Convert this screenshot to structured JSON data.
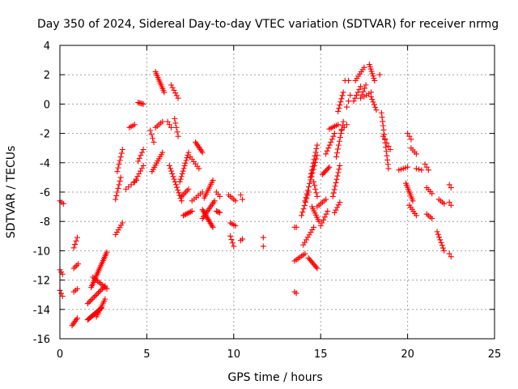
{
  "chart_data": {
    "type": "scatter",
    "title": "Day 350 of 2024, Sidereal Day-to-day VTEC variation (SDTVAR) for receiver nrmg",
    "xlabel": "GPS time / hours",
    "ylabel": "SDTVAR / TECUs",
    "xlim": [
      0,
      25
    ],
    "ylim": [
      -16,
      4
    ],
    "xticks": [
      0,
      5,
      10,
      15,
      20,
      25
    ],
    "yticks": [
      -16,
      -14,
      -12,
      -10,
      -8,
      -6,
      -4,
      -2,
      0,
      2,
      4
    ],
    "grid": true,
    "marker": "+",
    "color": "#ff0000",
    "series": [
      {
        "name": "SDTVAR",
        "segments": [
          {
            "x0": 0.0,
            "x1": 0.2,
            "y0": -6.6,
            "y1": -6.8,
            "n": 3
          },
          {
            "x0": 0.0,
            "x1": 0.15,
            "y0": -11.3,
            "y1": -11.6,
            "n": 3
          },
          {
            "x0": 0.0,
            "x1": 0.15,
            "y0": -12.7,
            "y1": -13.1,
            "n": 3
          },
          {
            "x0": 0.7,
            "x1": 1.0,
            "y0": -15.1,
            "y1": -14.6,
            "n": 6
          },
          {
            "x0": 0.8,
            "x1": 1.0,
            "y0": -12.8,
            "y1": -12.6,
            "n": 3
          },
          {
            "x0": 0.8,
            "x1": 1.05,
            "y0": -11.2,
            "y1": -10.9,
            "n": 4
          },
          {
            "x0": 0.8,
            "x1": 1.0,
            "y0": -9.8,
            "y1": -9.1,
            "n": 4
          },
          {
            "x0": 1.6,
            "x1": 2.4,
            "y0": -14.7,
            "y1": -13.9,
            "n": 18
          },
          {
            "x0": 1.6,
            "x1": 2.6,
            "y0": -13.6,
            "y1": -12.4,
            "n": 14
          },
          {
            "x0": 1.8,
            "x1": 2.7,
            "y0": -12.5,
            "y1": -10.1,
            "n": 22
          },
          {
            "x0": 1.9,
            "x1": 2.7,
            "y0": -11.8,
            "y1": -12.6,
            "n": 10
          },
          {
            "x0": 2.1,
            "x1": 2.6,
            "y0": -14.5,
            "y1": -13.3,
            "n": 10
          },
          {
            "x0": 3.2,
            "x1": 3.6,
            "y0": -8.9,
            "y1": -8.1,
            "n": 6
          },
          {
            "x0": 3.2,
            "x1": 3.5,
            "y0": -6.5,
            "y1": -5.0,
            "n": 7
          },
          {
            "x0": 3.3,
            "x1": 3.6,
            "y0": -4.6,
            "y1": -3.1,
            "n": 7
          },
          {
            "x0": 3.8,
            "x1": 4.4,
            "y0": -5.8,
            "y1": -5.2,
            "n": 5
          },
          {
            "x0": 4.0,
            "x1": 4.3,
            "y0": -1.6,
            "y1": -1.4,
            "n": 4
          },
          {
            "x0": 4.5,
            "x1": 4.8,
            "y0": 0.1,
            "y1": 0.0,
            "n": 5
          },
          {
            "x0": 4.3,
            "x1": 4.8,
            "y0": -5.3,
            "y1": -4.2,
            "n": 7
          },
          {
            "x0": 4.5,
            "x1": 4.8,
            "y0": -3.9,
            "y1": -3.1,
            "n": 5
          },
          {
            "x0": 5.2,
            "x1": 5.4,
            "y0": -1.8,
            "y1": -2.6,
            "n": 4
          },
          {
            "x0": 5.3,
            "x1": 5.9,
            "y0": -4.6,
            "y1": -3.3,
            "n": 10
          },
          {
            "x0": 5.5,
            "x1": 6.0,
            "y0": 2.2,
            "y1": 0.8,
            "n": 12
          },
          {
            "x0": 5.5,
            "x1": 5.9,
            "y0": -1.6,
            "y1": -1.2,
            "n": 5
          },
          {
            "x0": 6.2,
            "x1": 6.4,
            "y0": -1.2,
            "y1": -1.6,
            "n": 3
          },
          {
            "x0": 6.3,
            "x1": 7.0,
            "y0": -4.2,
            "y1": -6.6,
            "n": 14
          },
          {
            "x0": 6.4,
            "x1": 6.8,
            "y0": 1.3,
            "y1": 0.4,
            "n": 6
          },
          {
            "x0": 6.6,
            "x1": 6.8,
            "y0": -1.0,
            "y1": -2.2,
            "n": 5
          },
          {
            "x0": 6.9,
            "x1": 7.4,
            "y0": -5.3,
            "y1": -3.3,
            "n": 12
          },
          {
            "x0": 7.0,
            "x1": 7.4,
            "y0": -6.3,
            "y1": -5.8,
            "n": 6
          },
          {
            "x0": 7.1,
            "x1": 7.6,
            "y0": -7.6,
            "y1": -7.3,
            "n": 8
          },
          {
            "x0": 7.5,
            "x1": 8.0,
            "y0": -3.6,
            "y1": -4.4,
            "n": 6
          },
          {
            "x0": 7.6,
            "x1": 8.2,
            "y0": -6.6,
            "y1": -6.0,
            "n": 6
          },
          {
            "x0": 7.8,
            "x1": 8.2,
            "y0": -2.6,
            "y1": -3.3,
            "n": 8
          },
          {
            "x0": 8.2,
            "x1": 8.8,
            "y0": -7.2,
            "y1": -8.4,
            "n": 14
          },
          {
            "x0": 8.3,
            "x1": 8.8,
            "y0": -6.4,
            "y1": -5.2,
            "n": 10
          },
          {
            "x0": 8.2,
            "x1": 8.9,
            "y0": -7.8,
            "y1": -6.6,
            "n": 12
          },
          {
            "x0": 9.0,
            "x1": 9.2,
            "y0": -7.3,
            "y1": -7.4,
            "n": 4
          },
          {
            "x0": 9.0,
            "x1": 9.2,
            "y0": -6.0,
            "y1": -6.3,
            "n": 3
          },
          {
            "x0": 9.7,
            "x1": 10.1,
            "y0": -6.2,
            "y1": -6.6,
            "n": 5
          },
          {
            "x0": 9.8,
            "x1": 10.1,
            "y0": -8.1,
            "y1": -8.3,
            "n": 4
          },
          {
            "x0": 9.8,
            "x1": 10.0,
            "y0": -9.0,
            "y1": -9.7,
            "n": 4
          },
          {
            "x0": 10.4,
            "x1": 10.5,
            "y0": -6.2,
            "y1": -6.5,
            "n": 2
          },
          {
            "x0": 10.4,
            "x1": 10.5,
            "y0": -9.3,
            "y1": -9.2,
            "n": 2
          },
          {
            "x0": 11.7,
            "x1": 11.7,
            "y0": -9.1,
            "y1": -9.1,
            "n": 1
          },
          {
            "x0": 11.7,
            "x1": 11.7,
            "y0": -9.7,
            "y1": -9.7,
            "n": 1
          },
          {
            "x0": 13.5,
            "x1": 13.6,
            "y0": -8.4,
            "y1": -8.4,
            "n": 2
          },
          {
            "x0": 13.5,
            "x1": 13.6,
            "y0": -12.8,
            "y1": -12.9,
            "n": 2
          },
          {
            "x0": 13.5,
            "x1": 14.1,
            "y0": -10.7,
            "y1": -10.2,
            "n": 7
          },
          {
            "x0": 13.9,
            "x1": 14.3,
            "y0": -7.6,
            "y1": -6.0,
            "n": 8
          },
          {
            "x0": 14.0,
            "x1": 14.6,
            "y0": -9.6,
            "y1": -8.4,
            "n": 8
          },
          {
            "x0": 14.1,
            "x1": 14.8,
            "y0": -6.6,
            "y1": -3.5,
            "n": 14
          },
          {
            "x0": 14.3,
            "x1": 14.8,
            "y0": -10.5,
            "y1": -11.2,
            "n": 9
          },
          {
            "x0": 14.4,
            "x1": 14.8,
            "y0": -5.0,
            "y1": -2.8,
            "n": 10
          },
          {
            "x0": 14.5,
            "x1": 14.9,
            "y0": -7.0,
            "y1": -8.0,
            "n": 8
          },
          {
            "x0": 14.6,
            "x1": 14.8,
            "y0": -5.3,
            "y1": -6.3,
            "n": 5
          },
          {
            "x0": 14.8,
            "x1": 15.3,
            "y0": -7.0,
            "y1": -6.5,
            "n": 6
          },
          {
            "x0": 15.0,
            "x1": 15.4,
            "y0": -8.3,
            "y1": -7.3,
            "n": 6
          },
          {
            "x0": 15.1,
            "x1": 15.5,
            "y0": -4.8,
            "y1": -4.3,
            "n": 7
          },
          {
            "x0": 15.3,
            "x1": 15.8,
            "y0": -3.4,
            "y1": -2.0,
            "n": 8
          },
          {
            "x0": 15.5,
            "x1": 16.0,
            "y0": -1.7,
            "y1": -1.4,
            "n": 6
          },
          {
            "x0": 15.7,
            "x1": 16.1,
            "y0": -6.3,
            "y1": -4.2,
            "n": 10
          },
          {
            "x0": 15.8,
            "x1": 16.1,
            "y0": -7.4,
            "y1": -6.7,
            "n": 5
          },
          {
            "x0": 15.9,
            "x1": 16.3,
            "y0": -3.6,
            "y1": -1.2,
            "n": 10
          },
          {
            "x0": 16.0,
            "x1": 16.3,
            "y0": -0.5,
            "y1": 0.8,
            "n": 7
          },
          {
            "x0": 16.2,
            "x1": 16.5,
            "y0": -1.8,
            "y1": -1.4,
            "n": 3
          },
          {
            "x0": 16.4,
            "x1": 16.6,
            "y0": 1.6,
            "y1": 1.6,
            "n": 2
          },
          {
            "x0": 16.5,
            "x1": 16.7,
            "y0": -0.2,
            "y1": 0.6,
            "n": 3
          },
          {
            "x0": 16.9,
            "x1": 17.3,
            "y0": 0.2,
            "y1": 1.2,
            "n": 6
          },
          {
            "x0": 17.0,
            "x1": 17.5,
            "y0": 1.6,
            "y1": 2.5,
            "n": 7
          },
          {
            "x0": 17.3,
            "x1": 17.6,
            "y0": 0.4,
            "y1": 1.3,
            "n": 5
          },
          {
            "x0": 17.5,
            "x1": 17.9,
            "y0": 0.5,
            "y1": 0.8,
            "n": 4
          },
          {
            "x0": 17.8,
            "x1": 18.1,
            "y0": 2.7,
            "y1": 1.6,
            "n": 8
          },
          {
            "x0": 17.9,
            "x1": 18.2,
            "y0": 0.5,
            "y1": -0.4,
            "n": 6
          },
          {
            "x0": 18.4,
            "x1": 18.5,
            "y0": 2.0,
            "y1": 2.0,
            "n": 1
          },
          {
            "x0": 18.5,
            "x1": 18.9,
            "y0": -0.6,
            "y1": -4.4,
            "n": 14
          },
          {
            "x0": 18.6,
            "x1": 19.0,
            "y0": -2.2,
            "y1": -3.1,
            "n": 5
          },
          {
            "x0": 19.5,
            "x1": 20.0,
            "y0": -4.5,
            "y1": -4.3,
            "n": 5
          },
          {
            "x0": 19.9,
            "x1": 20.3,
            "y0": -5.4,
            "y1": -6.6,
            "n": 10
          },
          {
            "x0": 20.0,
            "x1": 20.2,
            "y0": -2.0,
            "y1": -2.4,
            "n": 3
          },
          {
            "x0": 20.2,
            "x1": 20.5,
            "y0": -3.0,
            "y1": -3.4,
            "n": 4
          },
          {
            "x0": 20.1,
            "x1": 20.5,
            "y0": -6.9,
            "y1": -7.6,
            "n": 6
          },
          {
            "x0": 20.5,
            "x1": 20.8,
            "y0": -4.4,
            "y1": -4.5,
            "n": 3
          },
          {
            "x0": 21.0,
            "x1": 21.2,
            "y0": -4.1,
            "y1": -4.5,
            "n": 3
          },
          {
            "x0": 21.1,
            "x1": 21.4,
            "y0": -5.7,
            "y1": -6.1,
            "n": 4
          },
          {
            "x0": 21.1,
            "x1": 21.4,
            "y0": -7.5,
            "y1": -7.8,
            "n": 4
          },
          {
            "x0": 21.7,
            "x1": 22.1,
            "y0": -8.7,
            "y1": -10.0,
            "n": 8
          },
          {
            "x0": 21.8,
            "x1": 22.1,
            "y0": -6.5,
            "y1": -6.8,
            "n": 4
          },
          {
            "x0": 22.4,
            "x1": 22.5,
            "y0": -5.5,
            "y1": -5.7,
            "n": 2
          },
          {
            "x0": 22.4,
            "x1": 22.5,
            "y0": -6.7,
            "y1": -6.9,
            "n": 2
          },
          {
            "x0": 22.4,
            "x1": 22.5,
            "y0": -10.2,
            "y1": -10.4,
            "n": 2
          }
        ]
      }
    ]
  }
}
